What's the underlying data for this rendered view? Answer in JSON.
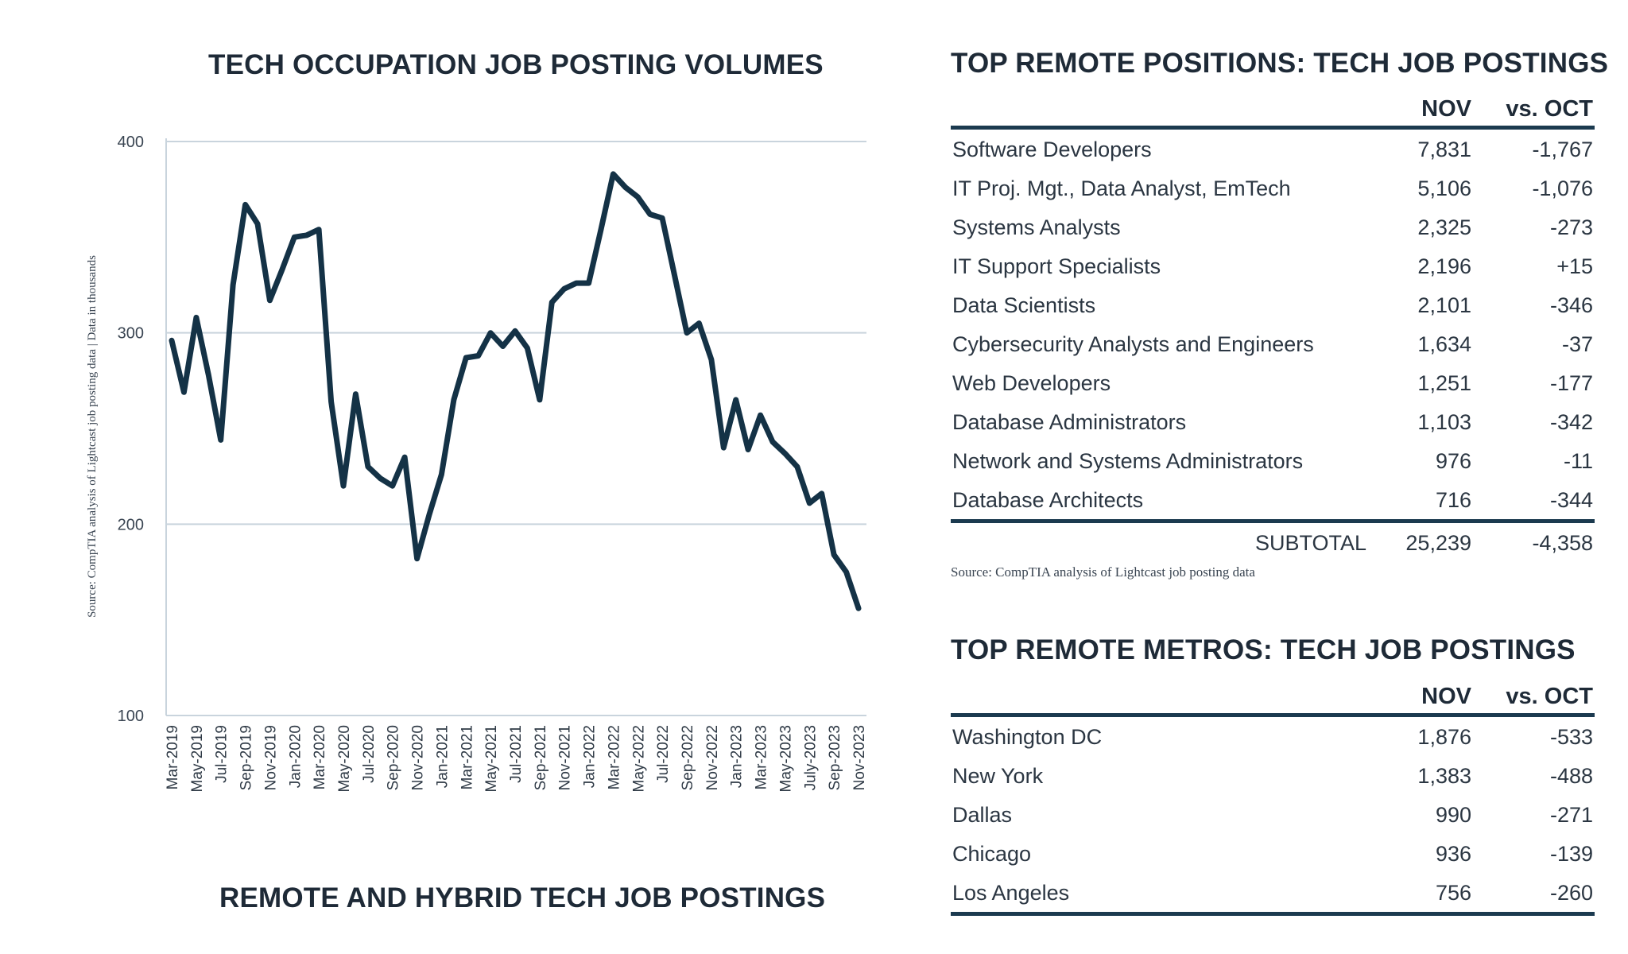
{
  "chart_data": {
    "type": "line",
    "title": "TECH OCCUPATION JOB POSTING VOLUMES",
    "subtitle": "REMOTE AND HYBRID TECH JOB POSTINGS",
    "ylabel": "Source: CompTIA analysis of Lightcast job posting data | Data in thousands",
    "xlabel": "",
    "ylim": [
      100,
      400
    ],
    "yticks": [
      100,
      200,
      300,
      400
    ],
    "grid": true,
    "x_tick_labels": [
      "Mar-2019",
      "May-2019",
      "Jul-2019",
      "Sep-2019",
      "Nov-2019",
      "Jan-2020",
      "Mar-2020",
      "May-2020",
      "Jul-2020",
      "Sep-2020",
      "Nov-2020",
      "Jan-2021",
      "Mar-2021",
      "May-2021",
      "Jul-2021",
      "Sep-2021",
      "Nov-2021",
      "Jan-2022",
      "Mar-2022",
      "May-2022",
      "Jul-2022",
      "Sep-2022",
      "Nov-2022",
      "Jan-2023",
      "Mar-2023",
      "May-2023",
      "July-2023",
      "Sep-2023",
      "Nov-2023"
    ],
    "series": [
      {
        "color": "#143246",
        "values": [
          296,
          269,
          308,
          278,
          244,
          325,
          367,
          357,
          317,
          333,
          350,
          351,
          354,
          264,
          220,
          268,
          230,
          224,
          220,
          235,
          182,
          205,
          226,
          265,
          287,
          288,
          300,
          293,
          301,
          292,
          265,
          316,
          323,
          326,
          326,
          354,
          383,
          376,
          371,
          362,
          360,
          330,
          300,
          305,
          286,
          240,
          265,
          239,
          257,
          243,
          237,
          230,
          211,
          216,
          184,
          175,
          156
        ]
      }
    ]
  },
  "positions_table": {
    "title": "TOP REMOTE POSITIONS: TECH JOB POSTINGS",
    "col_nov": "NOV",
    "col_oct": "vs. OCT",
    "rows": [
      {
        "name": "Software Developers",
        "nov": "7,831",
        "oct": "-1,767"
      },
      {
        "name": "IT Proj. Mgt., Data Analyst, EmTech",
        "nov": "5,106",
        "oct": "-1,076"
      },
      {
        "name": "Systems Analysts",
        "nov": "2,325",
        "oct": "-273"
      },
      {
        "name": "IT Support Specialists",
        "nov": "2,196",
        "oct": "+15"
      },
      {
        "name": "Data Scientists",
        "nov": "2,101",
        "oct": "-346"
      },
      {
        "name": " Cybersecurity Analysts and Engineers",
        "nov": "1,634",
        "oct": "-37"
      },
      {
        "name": "Web Developers",
        "nov": "1,251",
        "oct": "-177"
      },
      {
        "name": "Database Administrators",
        "nov": "1,103",
        "oct": "-342"
      },
      {
        "name": "Network and Systems Administrators",
        "nov": "976",
        "oct": "-11"
      },
      {
        "name": "Database Architects",
        "nov": "716",
        "oct": "-344"
      }
    ],
    "subtotal_label": "SUBTOTAL",
    "subtotal_nov": "25,239",
    "subtotal_oct": "-4,358",
    "source": "Source: CompTIA analysis of Lightcast job posting data"
  },
  "metros_table": {
    "title": "TOP REMOTE METROS: TECH JOB POSTINGS",
    "col_nov": "NOV",
    "col_oct": "vs. OCT",
    "rows": [
      {
        "name": "Washington DC",
        "nov": "1,876",
        "oct": "-533"
      },
      {
        "name": "New York",
        "nov": "1,383",
        "oct": "-488"
      },
      {
        "name": "Dallas",
        "nov": "990",
        "oct": "-271"
      },
      {
        "name": "Chicago",
        "nov": "936",
        "oct": "-139"
      },
      {
        "name": "Los Angeles",
        "nov": "756",
        "oct": "-260"
      }
    ]
  },
  "colors": {
    "line": "#143246",
    "rule": "#1b3a4f",
    "grid": "#c9d4dd"
  }
}
